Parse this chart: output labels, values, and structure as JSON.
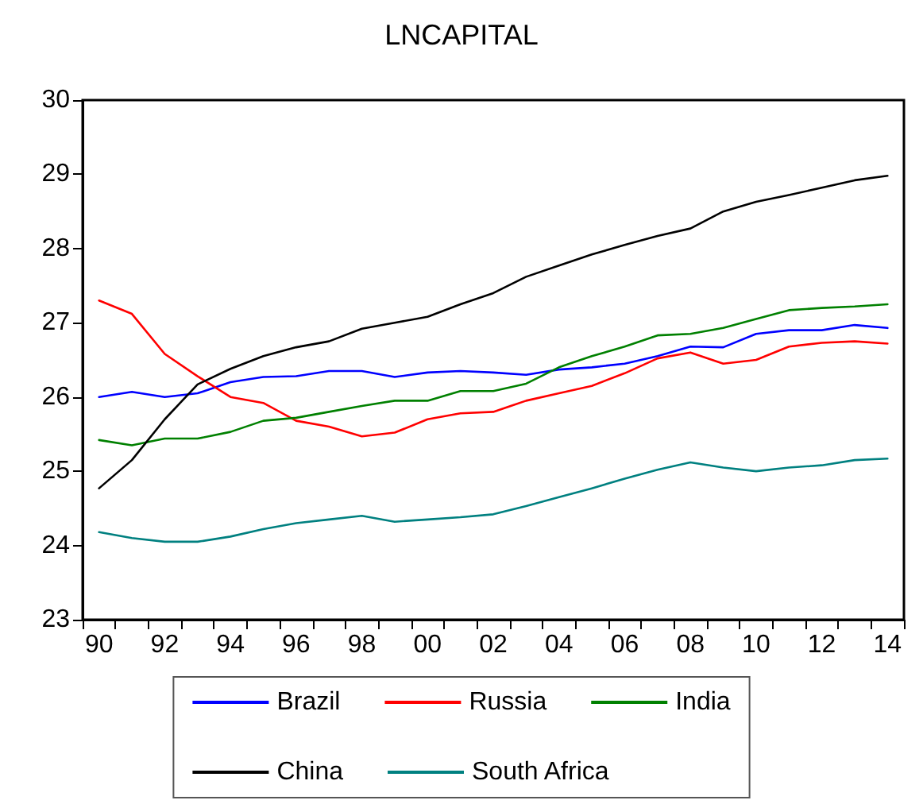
{
  "chart_data": {
    "type": "line",
    "title": "LNCAPITAL",
    "categories": [
      "90",
      null,
      "92",
      null,
      "94",
      null,
      "96",
      null,
      "98",
      null,
      "00",
      null,
      "02",
      null,
      "04",
      null,
      "06",
      null,
      "08",
      null,
      "10",
      null,
      "12",
      null,
      "14"
    ],
    "series": [
      {
        "name": "Brazil",
        "color": "#0000ff",
        "values": [
          26.0,
          26.07,
          26.0,
          26.05,
          26.2,
          26.27,
          26.28,
          26.35,
          26.35,
          26.27,
          26.33,
          26.35,
          26.33,
          26.3,
          26.37,
          26.4,
          26.45,
          26.55,
          26.68,
          26.67,
          26.85,
          26.9,
          26.9,
          26.97,
          26.93
        ]
      },
      {
        "name": "Russia",
        "color": "#ff0000",
        "values": [
          27.3,
          27.12,
          26.58,
          26.28,
          26.0,
          25.92,
          25.68,
          25.6,
          25.47,
          25.52,
          25.7,
          25.78,
          25.8,
          25.95,
          26.05,
          26.15,
          26.32,
          26.52,
          26.6,
          26.45,
          26.5,
          26.68,
          26.73,
          26.75,
          26.72
        ]
      },
      {
        "name": "India",
        "color": "#008000",
        "values": [
          25.42,
          25.35,
          25.44,
          25.44,
          25.53,
          25.68,
          25.72,
          25.8,
          25.88,
          25.95,
          25.95,
          26.08,
          26.08,
          26.18,
          26.4,
          26.55,
          26.68,
          26.83,
          26.85,
          26.93,
          27.05,
          27.17,
          27.2,
          27.22,
          27.25
        ]
      },
      {
        "name": "China",
        "color": "#000000",
        "values": [
          24.77,
          25.15,
          25.7,
          26.17,
          26.38,
          26.55,
          26.67,
          26.75,
          26.92,
          27.0,
          27.08,
          27.25,
          27.4,
          27.62,
          27.77,
          27.92,
          28.05,
          28.17,
          28.27,
          28.5,
          28.63,
          28.72,
          28.82,
          28.92,
          28.98
        ]
      },
      {
        "name": "South Africa",
        "color": "#008080",
        "values": [
          24.18,
          24.1,
          24.05,
          24.05,
          24.12,
          24.22,
          24.3,
          24.35,
          24.4,
          24.32,
          24.35,
          24.38,
          24.42,
          24.53,
          24.65,
          24.77,
          24.9,
          25.02,
          25.12,
          25.05,
          25.0,
          25.05,
          25.08,
          25.15,
          25.17
        ]
      }
    ],
    "ylim": [
      23,
      30
    ],
    "yticks": [
      23,
      24,
      25,
      26,
      27,
      28,
      29,
      30
    ],
    "grid": false,
    "legend": "bottom",
    "marker": "none",
    "line_style": "solid"
  }
}
